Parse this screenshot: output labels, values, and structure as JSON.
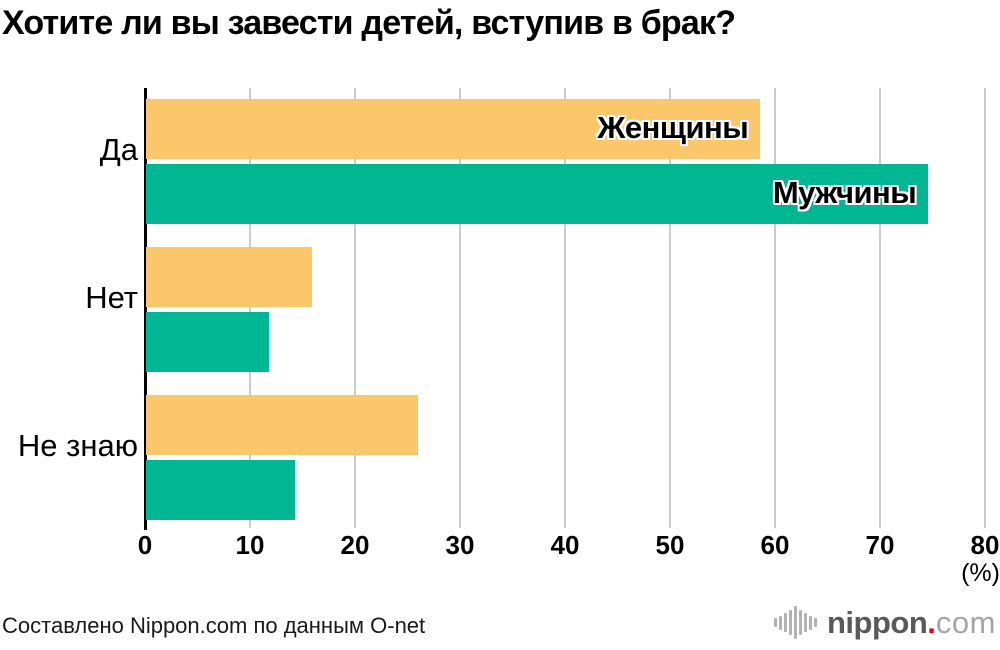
{
  "title": "Хотите ли вы завести детей, вступив в брак?",
  "chart_data": {
    "type": "bar",
    "orientation": "horizontal",
    "title": "Хотите ли вы завести детей, вступив в брак?",
    "categories": [
      "Да",
      "Нет",
      "Не знаю"
    ],
    "series": [
      {
        "name": "Женщины",
        "color": "#FBC76A",
        "values": [
          58.5,
          15.8,
          25.9
        ]
      },
      {
        "name": "Мужчины",
        "color": "#00B793",
        "values": [
          74.5,
          11.7,
          14.2
        ]
      }
    ],
    "xlabel": "(%)",
    "ylabel": "",
    "xlim": [
      0,
      80
    ],
    "x_ticks": [
      0,
      10,
      20,
      30,
      40,
      50,
      60,
      70,
      80
    ],
    "grid": "vertical-gridlines",
    "legend_position": "inside-first-bars",
    "gridline_color": "#cccccc",
    "axis_color": "#000000"
  },
  "footer": {
    "source_text": "Составлено Nippon.com по данным O-net"
  },
  "logo": {
    "icon": "soundwave-icon",
    "name_bold": "nippon",
    "dot": ".",
    "name_light": "com",
    "dot_color": "#e60012"
  }
}
